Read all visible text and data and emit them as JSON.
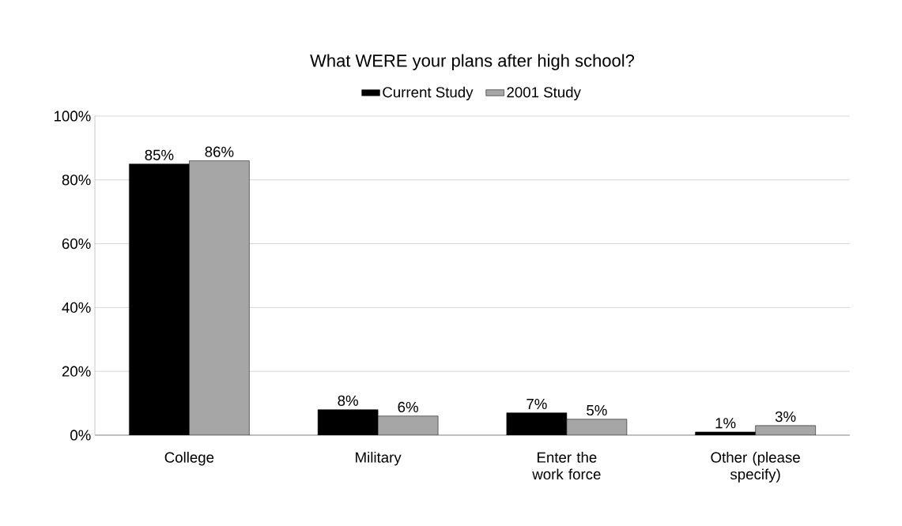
{
  "chart_data": {
    "type": "bar",
    "title": "What WERE your plans after high school?",
    "categories": [
      "College",
      "Military",
      "Enter the work force",
      "Other (please specify)"
    ],
    "series": [
      {
        "name": "Current Study",
        "color": "#000000",
        "values": [
          85,
          8,
          7,
          1
        ],
        "value_labels": [
          "85%",
          "8%",
          "7%",
          "1%"
        ]
      },
      {
        "name": "2001 Study",
        "color": "#a6a6a6",
        "values": [
          86,
          6,
          5,
          3
        ],
        "value_labels": [
          "86%",
          "6%",
          "5%",
          "3%"
        ]
      }
    ],
    "ylim": [
      0,
      100
    ],
    "yticks": [
      {
        "value": 0,
        "label": "0%"
      },
      {
        "value": 20,
        "label": "20%"
      },
      {
        "value": 40,
        "label": "40%"
      },
      {
        "value": 60,
        "label": "60%"
      },
      {
        "value": 80,
        "label": "80%"
      },
      {
        "value": 100,
        "label": "100%"
      }
    ],
    "grid": "y",
    "legend": "top"
  }
}
